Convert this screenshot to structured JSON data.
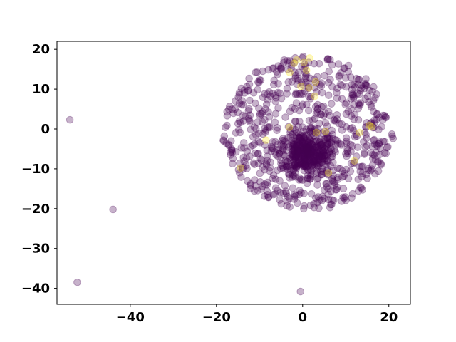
{
  "chart_data": {
    "type": "scatter",
    "title": "",
    "xlabel": "",
    "ylabel": "",
    "xlim": [
      -57,
      25
    ],
    "ylim": [
      -44,
      22
    ],
    "xticks": [
      -40,
      -20,
      0,
      20
    ],
    "yticks": [
      20,
      10,
      0,
      -10,
      -20,
      -30,
      -40
    ],
    "xtick_labels": [
      "−40",
      "−20",
      "0",
      "20"
    ],
    "ytick_labels": [
      "20",
      "10",
      "0",
      "−10",
      "−20",
      "−30",
      "−40"
    ],
    "grid": false,
    "legend": "none",
    "colormap": "viridis",
    "color_low": "#440154",
    "color_high": "#fde725",
    "marker_alpha": 0.3,
    "cluster": {
      "center": [
        1,
        -1
      ],
      "radius": 19.5,
      "approx_point_count": 1000,
      "dense_cores": [
        [
          1,
          -6
        ],
        [
          1,
          5
        ],
        [
          -3,
          2
        ]
      ]
    },
    "outliers": [
      {
        "x": -54,
        "y": 2.3,
        "value": 0
      },
      {
        "x": -44,
        "y": -20.2,
        "value": 0
      },
      {
        "x": -52.3,
        "y": -38.5,
        "value": 0
      },
      {
        "x": -0.5,
        "y": -40.8,
        "value": 0
      },
      {
        "x": 20.8,
        "y": -1.8,
        "value": 0
      },
      {
        "x": 21,
        "y": -2.4,
        "value": 0
      },
      {
        "x": 20.7,
        "y": -1.3,
        "value": 0
      }
    ],
    "highlighted_points": [
      {
        "x": -1.4,
        "y": 17.3,
        "value": 1
      },
      {
        "x": -2.0,
        "y": 16.5,
        "value": 1
      },
      {
        "x": -3.0,
        "y": 14.2,
        "value": 1
      },
      {
        "x": 1.6,
        "y": 17.8,
        "value": 1
      },
      {
        "x": 0.3,
        "y": 16.7,
        "value": 1
      },
      {
        "x": 0.9,
        "y": 14.7,
        "value": 1
      },
      {
        "x": -0.4,
        "y": 10.7,
        "value": 1
      },
      {
        "x": 1.5,
        "y": 10.3,
        "value": 1
      },
      {
        "x": 3.0,
        "y": 11.8,
        "value": 1
      },
      {
        "x": 2.8,
        "y": 8.2,
        "value": 1
      },
      {
        "x": -3.1,
        "y": 0.4,
        "value": 1
      },
      {
        "x": 3.2,
        "y": -0.9,
        "value": 1
      },
      {
        "x": 5.3,
        "y": -0.6,
        "value": 1
      },
      {
        "x": -8.5,
        "y": -2.8,
        "value": 1
      },
      {
        "x": -14.4,
        "y": -9.8,
        "value": 1
      },
      {
        "x": 6.0,
        "y": -11.0,
        "value": 1
      },
      {
        "x": 12.0,
        "y": -8.0,
        "value": 1
      },
      {
        "x": 13.2,
        "y": -0.9,
        "value": 1
      },
      {
        "x": 15.5,
        "y": 0.9,
        "value": 1
      },
      {
        "x": 16.0,
        "y": 0.5,
        "value": 1
      }
    ]
  }
}
